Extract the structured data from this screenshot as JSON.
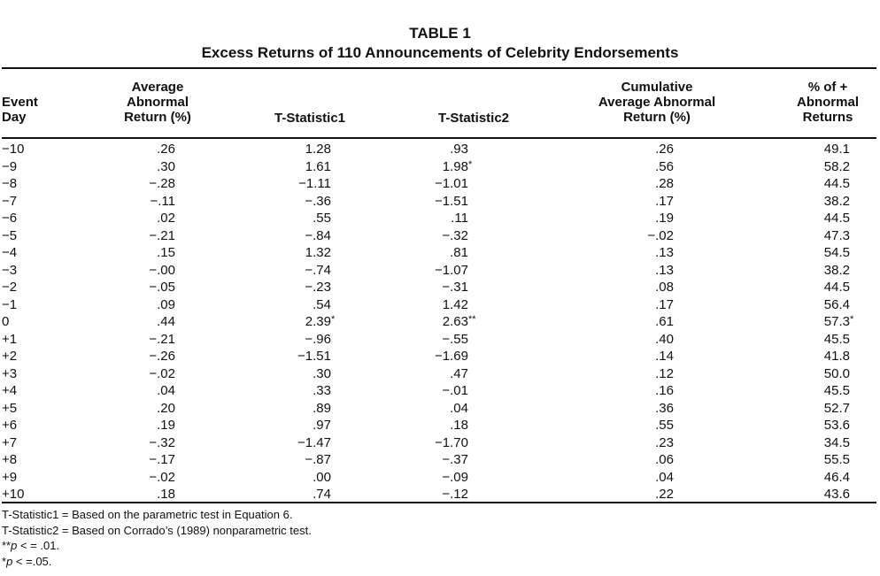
{
  "title": "TABLE 1",
  "subtitle": "Excess Returns of 110 Announcements of Celebrity Endorsements",
  "headers": {
    "day": [
      "Event",
      "Day"
    ],
    "avg": [
      "Average",
      "Abnormal",
      "Return (%)"
    ],
    "t1": [
      "T-Statistic1"
    ],
    "t2": [
      "T-Statistic2"
    ],
    "cum": [
      "Cumulative",
      "Average Abnormal",
      "Return (%)"
    ],
    "pct": [
      "% of +",
      "Abnormal",
      "Returns"
    ]
  },
  "rows": [
    {
      "day": "−10",
      "avg": ".26",
      "t1": "1.28",
      "t1_sig": "",
      "t2": ".93",
      "t2_sig": "",
      "cum": ".26",
      "pct": "49.1",
      "pct_sig": ""
    },
    {
      "day": "−9",
      "avg": ".30",
      "t1": "1.61",
      "t1_sig": "",
      "t2": "1.98",
      "t2_sig": "*",
      "cum": ".56",
      "pct": "58.2",
      "pct_sig": ""
    },
    {
      "day": "−8",
      "avg": "−.28",
      "t1": "−1.11",
      "t1_sig": "",
      "t2": "−1.01",
      "t2_sig": "",
      "cum": ".28",
      "pct": "44.5",
      "pct_sig": ""
    },
    {
      "day": "−7",
      "avg": "−.11",
      "t1": "−.36",
      "t1_sig": "",
      "t2": "−1.51",
      "t2_sig": "",
      "cum": ".17",
      "pct": "38.2",
      "pct_sig": ""
    },
    {
      "day": "−6",
      "avg": ".02",
      "t1": ".55",
      "t1_sig": "",
      "t2": ".11",
      "t2_sig": "",
      "cum": ".19",
      "pct": "44.5",
      "pct_sig": ""
    },
    {
      "day": "−5",
      "avg": "−.21",
      "t1": "−.84",
      "t1_sig": "",
      "t2": "−.32",
      "t2_sig": "",
      "cum": "−.02",
      "pct": "47.3",
      "pct_sig": ""
    },
    {
      "day": "−4",
      "avg": ".15",
      "t1": "1.32",
      "t1_sig": "",
      "t2": ".81",
      "t2_sig": "",
      "cum": ".13",
      "pct": "54.5",
      "pct_sig": ""
    },
    {
      "day": "−3",
      "avg": "−.00",
      "t1": "−.74",
      "t1_sig": "",
      "t2": "−1.07",
      "t2_sig": "",
      "cum": ".13",
      "pct": "38.2",
      "pct_sig": ""
    },
    {
      "day": "−2",
      "avg": "−.05",
      "t1": "−.23",
      "t1_sig": "",
      "t2": "−.31",
      "t2_sig": "",
      "cum": ".08",
      "pct": "44.5",
      "pct_sig": ""
    },
    {
      "day": "−1",
      "avg": ".09",
      "t1": ".54",
      "t1_sig": "",
      "t2": "1.42",
      "t2_sig": "",
      "cum": ".17",
      "pct": "56.4",
      "pct_sig": ""
    },
    {
      "day": "0",
      "avg": ".44",
      "t1": "2.39",
      "t1_sig": "*",
      "t2": "2.63",
      "t2_sig": "**",
      "cum": ".61",
      "pct": "57.3",
      "pct_sig": "*"
    },
    {
      "day": "+1",
      "avg": "−.21",
      "t1": "−.96",
      "t1_sig": "",
      "t2": "−.55",
      "t2_sig": "",
      "cum": ".40",
      "pct": "45.5",
      "pct_sig": ""
    },
    {
      "day": "+2",
      "avg": "−.26",
      "t1": "−1.51",
      "t1_sig": "",
      "t2": "−1.69",
      "t2_sig": "",
      "cum": ".14",
      "pct": "41.8",
      "pct_sig": ""
    },
    {
      "day": "+3",
      "avg": "−.02",
      "t1": ".30",
      "t1_sig": "",
      "t2": ".47",
      "t2_sig": "",
      "cum": ".12",
      "pct": "50.0",
      "pct_sig": ""
    },
    {
      "day": "+4",
      "avg": ".04",
      "t1": ".33",
      "t1_sig": "",
      "t2": "−.01",
      "t2_sig": "",
      "cum": ".16",
      "pct": "45.5",
      "pct_sig": ""
    },
    {
      "day": "+5",
      "avg": ".20",
      "t1": ".89",
      "t1_sig": "",
      "t2": ".04",
      "t2_sig": "",
      "cum": ".36",
      "pct": "52.7",
      "pct_sig": ""
    },
    {
      "day": "+6",
      "avg": ".19",
      "t1": ".97",
      "t1_sig": "",
      "t2": ".18",
      "t2_sig": "",
      "cum": ".55",
      "pct": "53.6",
      "pct_sig": ""
    },
    {
      "day": "+7",
      "avg": "−.32",
      "t1": "−1.47",
      "t1_sig": "",
      "t2": "−1.70",
      "t2_sig": "",
      "cum": ".23",
      "pct": "34.5",
      "pct_sig": ""
    },
    {
      "day": "+8",
      "avg": "−.17",
      "t1": "−.87",
      "t1_sig": "",
      "t2": "−.37",
      "t2_sig": "",
      "cum": ".06",
      "pct": "55.5",
      "pct_sig": ""
    },
    {
      "day": "+9",
      "avg": "−.02",
      "t1": ".00",
      "t1_sig": "",
      "t2": "−.09",
      "t2_sig": "",
      "cum": ".04",
      "pct": "46.4",
      "pct_sig": ""
    },
    {
      "day": "+10",
      "avg": ".18",
      "t1": ".74",
      "t1_sig": "",
      "t2": "−.12",
      "t2_sig": "",
      "cum": ".22",
      "pct": "43.6",
      "pct_sig": ""
    }
  ],
  "notes": {
    "n1": "T-Statistic1 = Based on the parametric test in Equation 6.",
    "n2": "T-Statistic2 = Based on Corrado’s (1989) nonparametric test.",
    "n3_mark": "**",
    "n3_var": "p",
    "n3_rest": " < = .01.",
    "n4_mark": "*",
    "n4_var": "p",
    "n4_rest": " < =.05."
  }
}
